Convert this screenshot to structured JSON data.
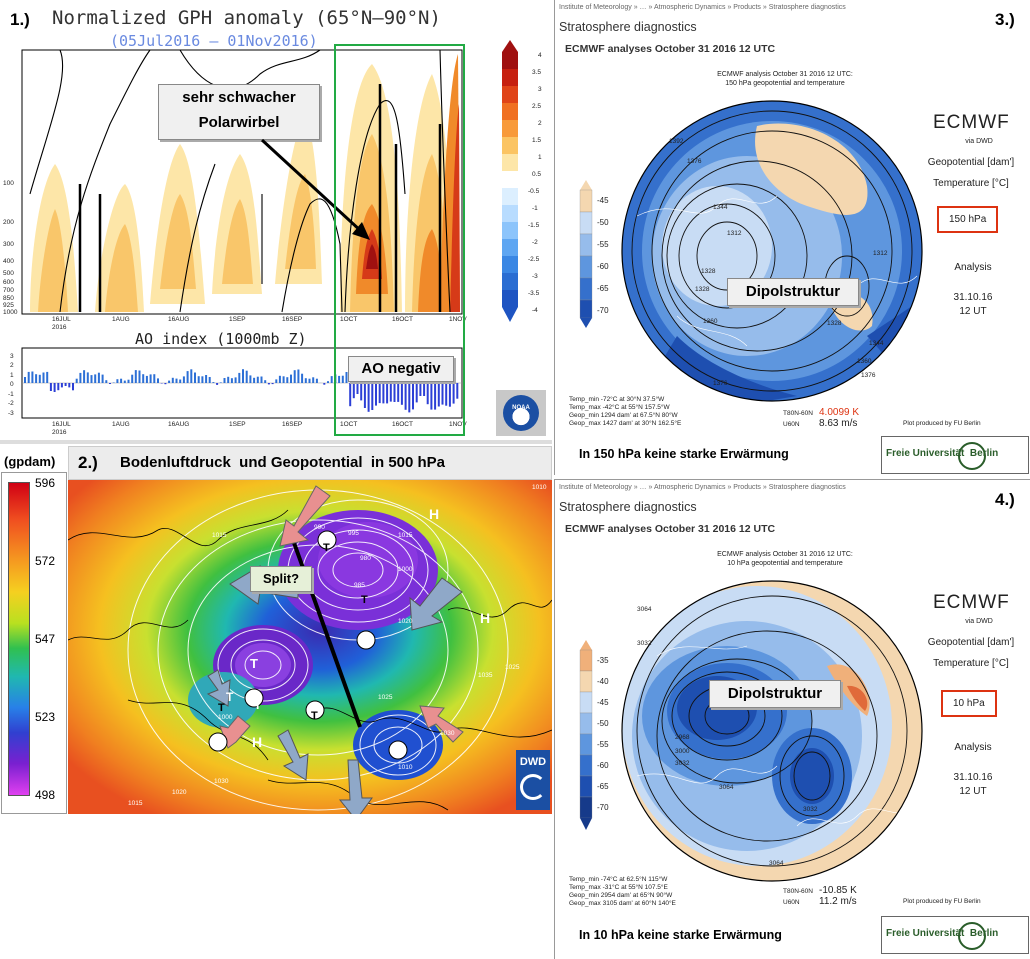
{
  "panel1": {
    "number": "1.)",
    "title": "Normalized GPH anomaly (65°N–90°N)",
    "date_range": "(05Jul2016 – 01Nov2016)",
    "y_ticks": [
      "100",
      "200",
      "300",
      "400",
      "500",
      "600",
      "700",
      "850",
      "925",
      "1000"
    ],
    "x_ticks": [
      "16JUL\n2016",
      "1AUG",
      "16AUG",
      "1SEP",
      "16SEP",
      "1OCT",
      "16OCT",
      "1NOV"
    ],
    "colorbar": [
      "4",
      "3.5",
      "3",
      "2.5",
      "2",
      "1.5",
      "1",
      "0.5",
      "-0.5",
      "-1",
      "-1.5",
      "-2",
      "-2.5",
      "-3",
      "-3.5",
      "-4"
    ],
    "callout_vortex_l1": "sehr schwacher",
    "callout_vortex_l2": "Polarwirbel",
    "ao_title": "AO index (1000mb Z)",
    "ao_y_ticks": [
      "3",
      "2",
      "1",
      "0",
      "-1",
      "-2",
      "-3"
    ],
    "ao_callout": "AO negativ",
    "logo": "NOAA"
  },
  "panel2": {
    "number": "2.)",
    "unit": "(gpdam)",
    "title": "Bodenluftdruck  und Geopotential  in 500 hPa",
    "colorbar": [
      "596",
      "572",
      "547",
      "523",
      "498"
    ],
    "split_label": "Split?",
    "logo": "DWD",
    "pressure_labels": [
      "1010",
      "1015",
      "990",
      "995",
      "980",
      "1000",
      "985",
      "1015",
      "1020",
      "1025",
      "1030",
      "1025",
      "1030",
      "1010",
      "1000",
      "1020",
      "1015",
      "1035"
    ],
    "symbols": [
      "H",
      "T",
      "T",
      "T",
      "T",
      "T",
      "T",
      "H",
      "H",
      "T",
      "T"
    ]
  },
  "panel3": {
    "number": "3.)",
    "breadcrumb": "Institute of Meteorology  »  …  »  Atmospheric Dynamics  »  Products  »  Stratosphere diagnostics",
    "page_title": "Stratosphere diagnostics",
    "subtitle": "ECMWF analyses October 31 2016 12 UTC",
    "map_title_l1": "ECMWF analysis October 31 2016 12 UTC:",
    "map_title_l2": "150 hPa geopotential and temperature",
    "colorbar": [
      "-45",
      "-50",
      "-55",
      "-60",
      "-65",
      "-70"
    ],
    "contour_labels": [
      "1392",
      "1376",
      "1344",
      "1312",
      "1328",
      "1328",
      "1312",
      "1360",
      "1344",
      "1360",
      "1376",
      "1328",
      "1376"
    ],
    "brand": "ECMWF",
    "via": "via DWD",
    "geopotential": "Geopotential [dam']",
    "temperature": "Temperature [°C]",
    "level": "150 hPa",
    "analysis": "Analysis",
    "date": "31.10.16",
    "time": "12 UT",
    "callout": "Dipolstruktur",
    "stats": [
      "Temp_min  -72°C at 30°N 37.5°W",
      "Temp_max  -42°C at 55°N 157.5°W",
      "Geop_min 1294 dam' at 67.5°N 80°W",
      "Geop_max 1427 dam' at 30°N 162.5°E"
    ],
    "t_diff_label": "T80N-60N",
    "t_diff": "4.0099 K",
    "u_label": "U60N",
    "u_value": "8.63 m/s",
    "plot_credit": "Plot produced by FU Berlin",
    "caption": "In 150 hPa keine starke Erwärmung",
    "fu_logo": "Freie Universität  Berlin"
  },
  "panel4": {
    "number": "4.)",
    "breadcrumb": "Institute of Meteorology  »  …  »  Atmospheric Dynamics  »  Products  »  Stratosphere diagnostics",
    "page_title": "Stratosphere diagnostics",
    "subtitle": "ECMWF analyses October 31 2016 12 UTC",
    "map_title_l1": "ECMWF analysis October 31 2016 12 UTC:",
    "map_title_l2": "10 hPa geopotential and temperature",
    "colorbar": [
      "-35",
      "-40",
      "-45",
      "-50",
      "-55",
      "-60",
      "-65",
      "-70"
    ],
    "contour_labels": [
      "3064",
      "3032",
      "2968",
      "3000",
      "3032",
      "3064",
      "3000",
      "3032",
      "3064"
    ],
    "brand": "ECMWF",
    "via": "via DWD",
    "geopotential": "Geopotential [dam']",
    "temperature": "Temperature [°C]",
    "level": "10 hPa",
    "analysis": "Analysis",
    "date": "31.10.16",
    "time": "12 UT",
    "callout": "Dipolstruktur",
    "stats": [
      "Temp_min  -74°C at 62.5°N 115°W",
      "Temp_max  -31°C at 55°N 107.5°E",
      "Geop_min 2954 dam' at 65°N 90°W",
      "Geop_max 3105 dam' at 60°N 140°E"
    ],
    "t_diff_label": "T80N-60N",
    "t_diff": "-10.85 K",
    "u_label": "U60N",
    "u_value": "11.2 m/s",
    "plot_credit": "Plot produced by FU Berlin",
    "caption": "In 10 hPa keine starke Erwärmung",
    "fu_logo": "Freie Universität  Berlin"
  },
  "colors": {
    "anomaly_pos": "#e8520f",
    "anomaly_neg": "#2c6fd6",
    "highlight_box": "#22aa44",
    "level_box": "#dd2211",
    "map_blue": "#3b78d4",
    "map_tan": "#f4d7b0"
  }
}
